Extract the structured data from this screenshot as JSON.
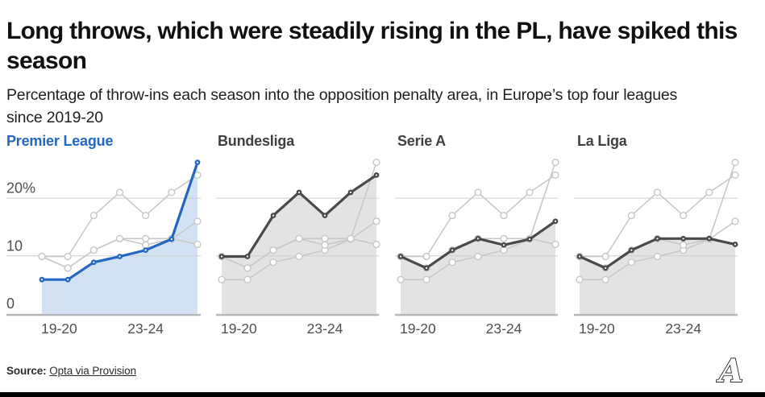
{
  "header": {
    "title": "Long throws, which were steadily rising in the PL, have spiked this season",
    "subtitle": "Percentage of throw-ins each season into the opposition penalty area, in Europe’s top four leagues since 2019-20"
  },
  "source": {
    "prefix": "Source:",
    "link_text": "Opta via Provision"
  },
  "branding": {
    "logo": "the-athletic-a-logo",
    "logo_letter": "A"
  },
  "colors": {
    "accent_blue": "#2268c3",
    "blue_fill": "#d3e2f2",
    "dark_line": "#4a4a4a",
    "gray_fill": "#e3e3e3",
    "light_line": "#c6c6c6",
    "gridline": "#cdcdcd",
    "baseline": "#b5b8ba",
    "axis_text": "#4f4f4f",
    "marker_bg_fill": "#ffffff"
  },
  "chart_data": {
    "type": "line",
    "unit": "%",
    "seasons": [
      "2019-20",
      "2020-21",
      "2021-22",
      "2022-23",
      "2023-24",
      "2024-25",
      "2025-26"
    ],
    "x_axis": {
      "tick_labels": [
        {
          "label": "19-20",
          "index": 0
        },
        {
          "label": "23-24",
          "index": 4
        }
      ]
    },
    "y_axis": {
      "ticks": [
        {
          "value": 0,
          "label": "0"
        },
        {
          "value": 10,
          "label": "10"
        },
        {
          "value": 20,
          "label": "20%"
        }
      ],
      "ylim": [
        0,
        27.5
      ],
      "grid": true,
      "labels_on_first_panel_only": true
    },
    "series": [
      {
        "name": "Premier League",
        "values": [
          5.9,
          5.9,
          8.9,
          9.9,
          11.0,
          12.9,
          26.2
        ]
      },
      {
        "name": "Bundesliga",
        "values": [
          9.9,
          9.9,
          17.0,
          21.0,
          17.0,
          21.0,
          24.0
        ]
      },
      {
        "name": "Serie A",
        "values": [
          9.9,
          7.9,
          11.0,
          13.0,
          11.9,
          12.9,
          16.0
        ]
      },
      {
        "name": "La Liga",
        "values": [
          9.9,
          7.9,
          11.0,
          13.0,
          13.0,
          13.0,
          12.0
        ]
      }
    ],
    "panels": [
      {
        "title": "Premier League",
        "focal_series": "Premier League",
        "line_color": "#2268c3",
        "fill_color": "#d3e2f2",
        "title_color": "#2268c3"
      },
      {
        "title": "Bundesliga",
        "focal_series": "Bundesliga",
        "line_color": "#4a4a4a",
        "fill_color": "#e3e3e3",
        "title_color": "#3f3f3f"
      },
      {
        "title": "Serie A",
        "focal_series": "Serie A",
        "line_color": "#4a4a4a",
        "fill_color": "#e3e3e3",
        "title_color": "#3f3f3f"
      },
      {
        "title": "La Liga",
        "focal_series": "La Liga",
        "line_color": "#4a4a4a",
        "fill_color": "#e3e3e3",
        "title_color": "#3f3f3f"
      }
    ]
  }
}
